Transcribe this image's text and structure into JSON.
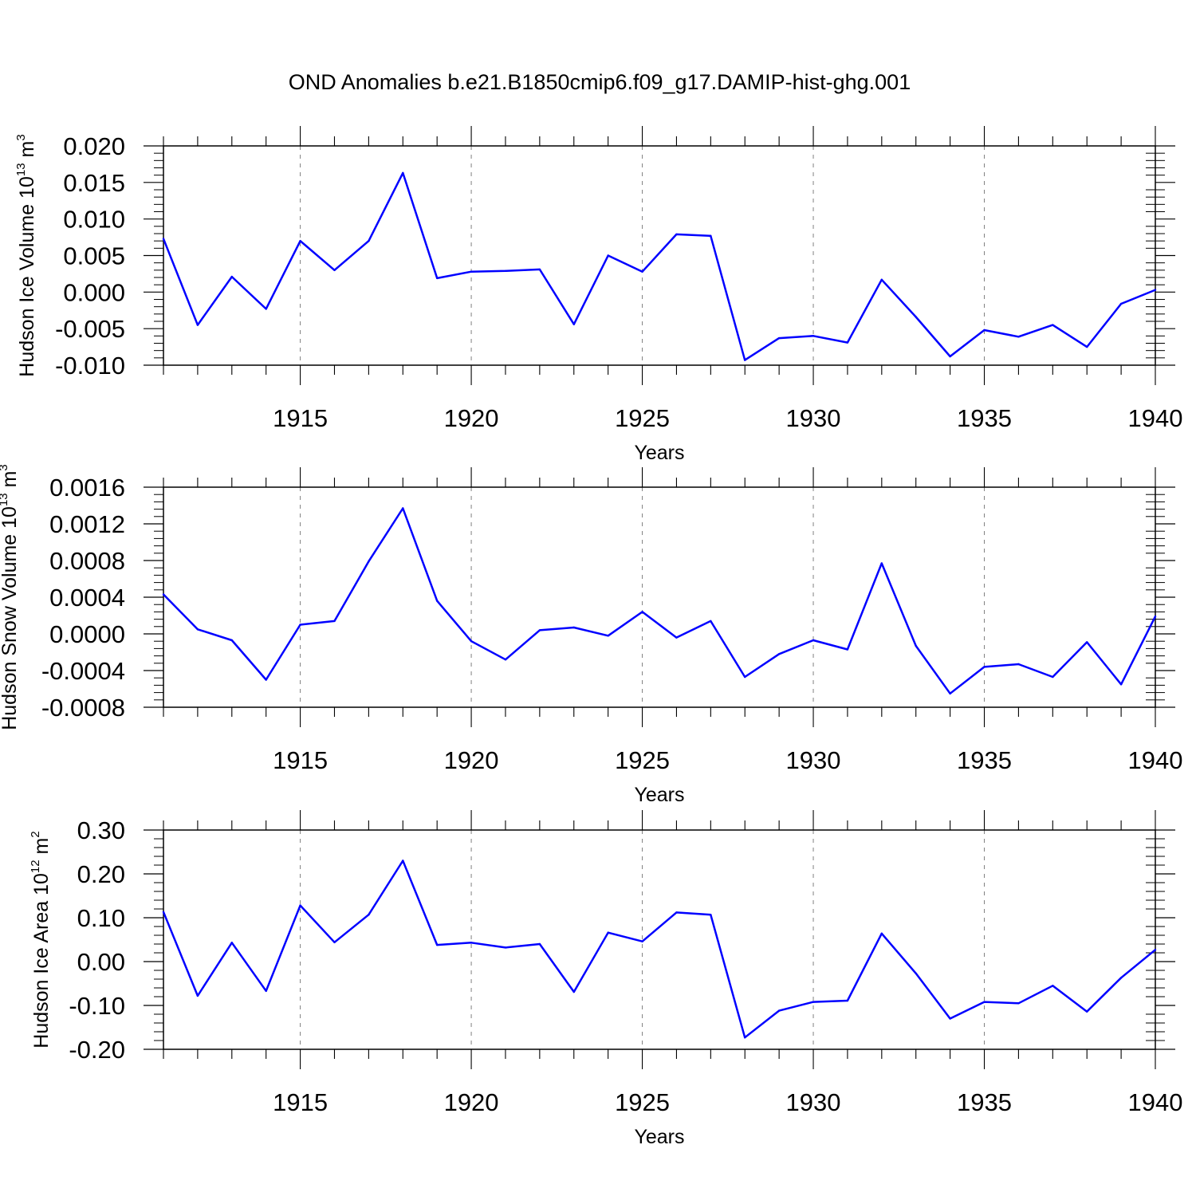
{
  "title": "OND Anomalies b.e21.B1850cmip6.f09_g17.DAMIP-hist-ghg.001",
  "colors": {
    "line": "#0000ff",
    "axis": "#000000",
    "grid": "#808080"
  },
  "chart_data": [
    {
      "type": "line",
      "ylabel_main": "Hudson Ice Volume 10",
      "ylabel_sup": "13",
      "ylabel_unit": " m",
      "ylabel_unit_sup": "3",
      "xlabel": "Years",
      "xlim": [
        1911,
        1940
      ],
      "ylim": [
        -0.01,
        0.02
      ],
      "yticks": [
        -0.01,
        -0.005,
        0.0,
        0.005,
        0.01,
        0.015,
        0.02
      ],
      "ytick_labels": [
        "-0.010",
        "-0.005",
        "0.000",
        "0.005",
        "0.010",
        "0.015",
        "0.020"
      ],
      "xticks": [
        1915,
        1920,
        1925,
        1930,
        1935,
        1940
      ],
      "xtick_labels": [
        "1915",
        "1920",
        "1925",
        "1930",
        "1935",
        "1940"
      ],
      "grid_x": [
        1915,
        1920,
        1925,
        1930,
        1935
      ],
      "x": [
        1911,
        1912,
        1913,
        1914,
        1915,
        1916,
        1917,
        1918,
        1919,
        1920,
        1921,
        1922,
        1923,
        1924,
        1925,
        1926,
        1927,
        1928,
        1929,
        1930,
        1931,
        1932,
        1933,
        1934,
        1935,
        1936,
        1937,
        1938,
        1939,
        1940
      ],
      "values": [
        0.0073,
        -0.0045,
        0.0021,
        -0.0023,
        0.007,
        0.003,
        0.007,
        0.0163,
        0.0019,
        0.0028,
        0.0029,
        0.0031,
        -0.0044,
        0.005,
        0.0028,
        0.0079,
        0.0077,
        -0.0093,
        -0.0063,
        -0.006,
        -0.0069,
        0.0017,
        -0.0034,
        -0.0088,
        -0.0052,
        -0.0061,
        -0.0045,
        -0.0075,
        -0.0016,
        0.0003
      ]
    },
    {
      "type": "line",
      "ylabel_main": "Hudson Snow Volume 10",
      "ylabel_sup": "13",
      "ylabel_unit": " m",
      "ylabel_unit_sup": "3",
      "xlabel": "Years",
      "xlim": [
        1911,
        1940
      ],
      "ylim": [
        -0.0008,
        0.0016
      ],
      "yticks": [
        -0.0008,
        -0.0004,
        0.0,
        0.0004,
        0.0008,
        0.0012,
        0.0016
      ],
      "ytick_labels": [
        "-0.0008",
        "-0.0004",
        "0.0000",
        "0.0004",
        "0.0008",
        "0.0012",
        "0.0016"
      ],
      "xticks": [
        1915,
        1920,
        1925,
        1930,
        1935,
        1940
      ],
      "xtick_labels": [
        "1915",
        "1920",
        "1925",
        "1930",
        "1935",
        "1940"
      ],
      "grid_x": [
        1915,
        1920,
        1925,
        1930,
        1935
      ],
      "x": [
        1911,
        1912,
        1913,
        1914,
        1915,
        1916,
        1917,
        1918,
        1919,
        1920,
        1921,
        1922,
        1923,
        1924,
        1925,
        1926,
        1927,
        1928,
        1929,
        1930,
        1931,
        1932,
        1933,
        1934,
        1935,
        1936,
        1937,
        1938,
        1939,
        1940
      ],
      "values": [
        0.00043,
        5e-05,
        -7e-05,
        -0.0005,
        0.0001,
        0.00014,
        0.00079,
        0.00137,
        0.00036,
        -8e-05,
        -0.00028,
        4e-05,
        7e-05,
        -2e-05,
        0.00024,
        -4e-05,
        0.00014,
        -0.00047,
        -0.00022,
        -7e-05,
        -0.00017,
        0.00077,
        -0.00013,
        -0.00065,
        -0.00036,
        -0.00033,
        -0.00047,
        -9e-05,
        -0.00055,
        0.00019
      ]
    },
    {
      "type": "line",
      "ylabel_main": "Hudson Ice Area 10",
      "ylabel_sup": "12",
      "ylabel_unit": " m",
      "ylabel_unit_sup": "2",
      "xlabel": "Years",
      "xlim": [
        1911,
        1940
      ],
      "ylim": [
        -0.2,
        0.3
      ],
      "yticks": [
        -0.2,
        -0.1,
        0.0,
        0.1,
        0.2,
        0.3
      ],
      "ytick_labels": [
        "-0.20",
        "-0.10",
        "0.00",
        "0.10",
        "0.20",
        "0.30"
      ],
      "xticks": [
        1915,
        1920,
        1925,
        1930,
        1935,
        1940
      ],
      "xtick_labels": [
        "1915",
        "1920",
        "1925",
        "1930",
        "1935",
        "1940"
      ],
      "grid_x": [
        1915,
        1920,
        1925,
        1930,
        1935
      ],
      "x": [
        1911,
        1912,
        1913,
        1914,
        1915,
        1916,
        1917,
        1918,
        1919,
        1920,
        1921,
        1922,
        1923,
        1924,
        1925,
        1926,
        1927,
        1928,
        1929,
        1930,
        1931,
        1932,
        1933,
        1934,
        1935,
        1936,
        1937,
        1938,
        1939,
        1940
      ],
      "values": [
        0.113,
        -0.078,
        0.043,
        -0.067,
        0.128,
        0.044,
        0.107,
        0.23,
        0.038,
        0.043,
        0.032,
        0.04,
        -0.069,
        0.066,
        0.046,
        0.112,
        0.107,
        -0.173,
        -0.112,
        -0.092,
        -0.089,
        0.064,
        -0.027,
        -0.13,
        -0.092,
        -0.095,
        -0.055,
        -0.114,
        -0.037,
        0.027
      ]
    }
  ]
}
